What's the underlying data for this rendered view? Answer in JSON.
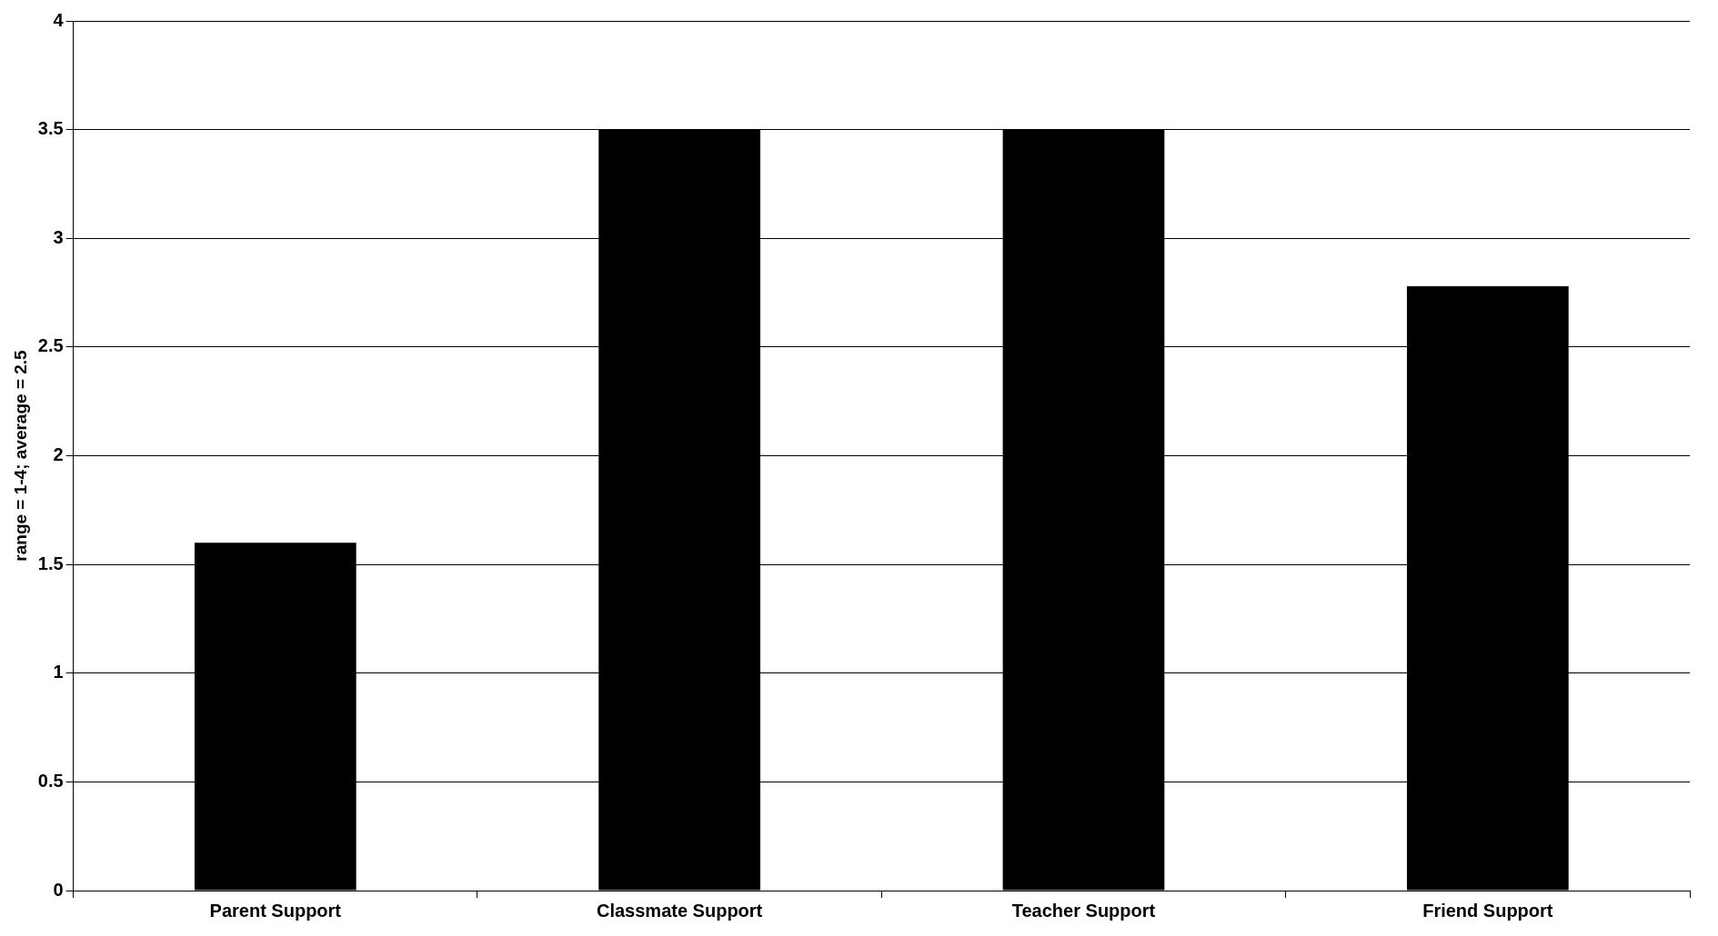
{
  "chart_data": {
    "type": "bar",
    "ylabel": "range = 1-4; average = 2.5",
    "categories": [
      "Parent Support",
      "Classmate Support",
      "Teacher Support",
      "Friend Support"
    ],
    "values": [
      1.6,
      3.5,
      3.5,
      2.78
    ],
    "color": "#000000",
    "ylim": [
      0,
      4
    ],
    "yticks": [
      0,
      0.5,
      1,
      1.5,
      2,
      2.5,
      3,
      3.5,
      4
    ],
    "grid": "y",
    "legend": false
  }
}
